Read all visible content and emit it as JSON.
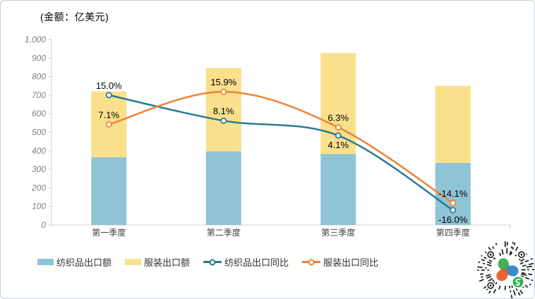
{
  "chart_data": {
    "type": "combo-stacked-bar-line",
    "title": "(金额：亿美元)",
    "categories": [
      "第一季度",
      "第二季度",
      "第三季度",
      "第四季度"
    ],
    "bar_series": [
      {
        "key": "textile-export-value",
        "name": "纺织品出口额",
        "color": "#8FC3D6",
        "values": [
          365,
          397,
          382,
          335
        ]
      },
      {
        "key": "apparel-export-value",
        "name": "服装出口额",
        "color": "#FAE08D",
        "values": [
          355,
          450,
          545,
          415
        ]
      }
    ],
    "line_series": [
      {
        "key": "textile-export-yoy",
        "name": "纺织品出口同比",
        "color": "#2A7A93",
        "values_pct": [
          15.0,
          8.1,
          4.1,
          -16.0
        ],
        "point_labels": [
          "15.0%",
          "8.1%",
          "4.1%",
          "-16.0%"
        ],
        "label_positions": [
          "above",
          "above",
          "below",
          "below"
        ]
      },
      {
        "key": "apparel-export-yoy",
        "name": "服装出口同比",
        "color": "#EE8335",
        "values_pct": [
          7.1,
          15.9,
          6.3,
          -14.1
        ],
        "point_labels": [
          "7.1%",
          "15.9%",
          "6.3%",
          "-14.1%"
        ],
        "label_positions": [
          "above",
          "above",
          "above",
          "above"
        ]
      }
    ],
    "value_axis": {
      "min": 0,
      "max": 1000,
      "step": 100,
      "tick_labels": [
        "0",
        "100",
        "200",
        "300",
        "400",
        "500",
        "600",
        "700",
        "800",
        "900",
        "1,000"
      ]
    },
    "pct_axis_hidden": {
      "min": -20,
      "max": 30
    },
    "legend_position": "bottom",
    "grid": false
  },
  "qr_code": {
    "name": "wechat-miniprogram-code",
    "logo_petal_colors": [
      "#3BAC47",
      "#2E86C8",
      "#F05A28"
    ],
    "badge_color": "#2BB24C",
    "dash_color": "#1A1A1A"
  }
}
